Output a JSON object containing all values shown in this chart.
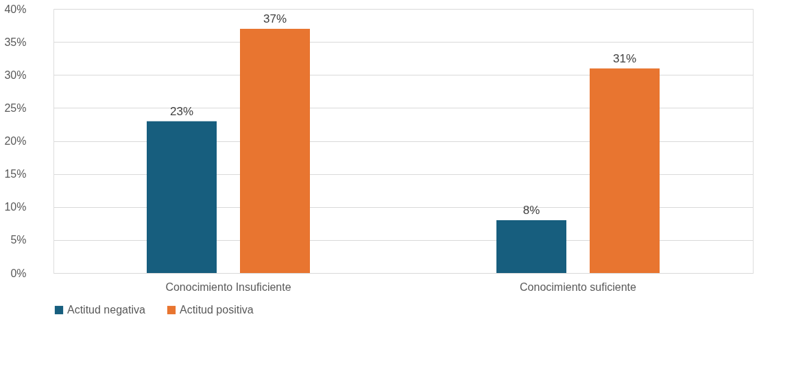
{
  "chart_data": {
    "type": "bar",
    "categories": [
      "Conocimiento Insuficiente",
      "Conocimiento suficiente"
    ],
    "series": [
      {
        "name": "Actitud negativa",
        "color": "#175e7e",
        "values": [
          23,
          8
        ],
        "value_labels": [
          "23%",
          "8%"
        ]
      },
      {
        "name": "Actitud positiva",
        "color": "#e87530",
        "values": [
          37,
          31
        ],
        "value_labels": [
          "37%",
          "31%"
        ]
      }
    ],
    "ylim": [
      0,
      40
    ],
    "yticks": [
      {
        "value": 0,
        "label": "0%"
      },
      {
        "value": 5,
        "label": "5%"
      },
      {
        "value": 10,
        "label": "10%"
      },
      {
        "value": 15,
        "label": "15%"
      },
      {
        "value": 20,
        "label": "20%"
      },
      {
        "value": 25,
        "label": "25%"
      },
      {
        "value": 30,
        "label": "30%"
      },
      {
        "value": 35,
        "label": "35%"
      },
      {
        "value": 40,
        "label": "40%"
      }
    ],
    "grid": "y",
    "legend": "bottom"
  }
}
